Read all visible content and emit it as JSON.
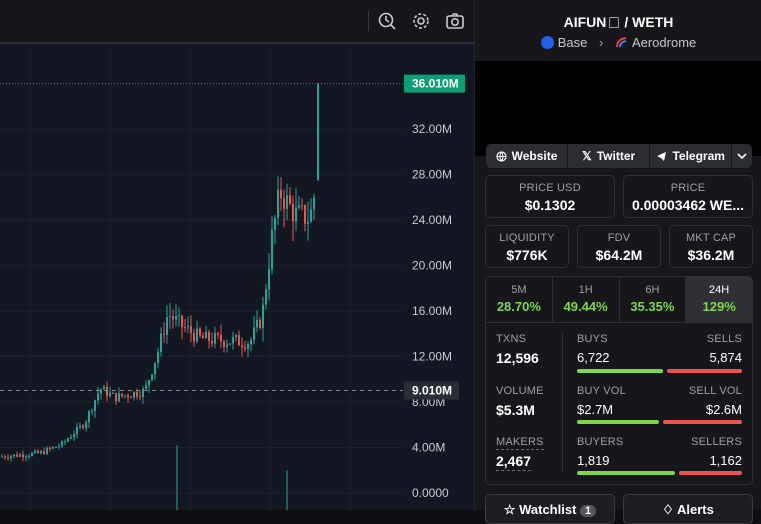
{
  "chart": {
    "price_labels": [
      "32.00M",
      "28.00M",
      "24.00M",
      "20.00M",
      "16.00M",
      "12.00M",
      "8.00M",
      "4.00M",
      "0.0000"
    ],
    "current_price_tag": "36.010M",
    "crosshair_tag": "9.010M",
    "toolbar_icons": [
      "replay-icon",
      "gear-icon",
      "camera-icon"
    ],
    "colors": {
      "up": "#26a69a",
      "down": "#ef5350",
      "tag_green": "#0e9f76",
      "tag_gray": "#2a2e39"
    }
  },
  "chart_data": {
    "type": "candlestick",
    "y_unit": "market cap",
    "ylim": [
      -1.5,
      39.5
    ],
    "current": 36.01,
    "crosshair": 9.01,
    "grid": true
  },
  "pair": {
    "base": "AIFUN",
    "sep": "/",
    "quote": "WETH"
  },
  "chain": {
    "network": "Base",
    "dex": "Aerodrome"
  },
  "links": [
    {
      "label": "Website",
      "icon": "globe-icon"
    },
    {
      "label": "Twitter",
      "icon": "x-icon"
    },
    {
      "label": "Telegram",
      "icon": "telegram-icon"
    }
  ],
  "price": {
    "usd_label": "PRICE USD",
    "usd_value": "$0.1302",
    "native_label": "PRICE",
    "native_value": "0.00003462 WE..."
  },
  "metrics": {
    "liquidity_label": "LIQUIDITY",
    "liquidity_value": "$776K",
    "fdv_label": "FDV",
    "fdv_value": "$64.2M",
    "mcap_label": "MKT CAP",
    "mcap_value": "$36.2M"
  },
  "timeframes": [
    {
      "label": "5M",
      "value": "28.70%"
    },
    {
      "label": "1H",
      "value": "49.44%"
    },
    {
      "label": "6H",
      "value": "35.35%"
    },
    {
      "label": "24H",
      "value": "129%"
    }
  ],
  "stats": {
    "txns_label": "TXNS",
    "txns_value": "12,596",
    "buys_label": "BUYS",
    "buys_value": "6,722",
    "sells_label": "SELLS",
    "sells_value": "5,874",
    "volume_label": "VOLUME",
    "volume_value": "$5.3M",
    "buyvol_label": "BUY VOL",
    "buyvol_value": "$2.7M",
    "sellvol_label": "SELL VOL",
    "sellvol_value": "$2.6M",
    "makers_label": "MAKERS",
    "makers_value": "2,467",
    "buyers_label": "BUYERS",
    "buyers_value": "1,819",
    "sellers_label": "SELLERS",
    "sellers_value": "1,162",
    "txns_buy_share": 0.534,
    "vol_buy_share": 0.51,
    "makers_buy_share": 0.61
  },
  "bottom": {
    "watchlist_label": "Watchlist",
    "watchlist_count": "1",
    "alerts_label": "Alerts"
  }
}
